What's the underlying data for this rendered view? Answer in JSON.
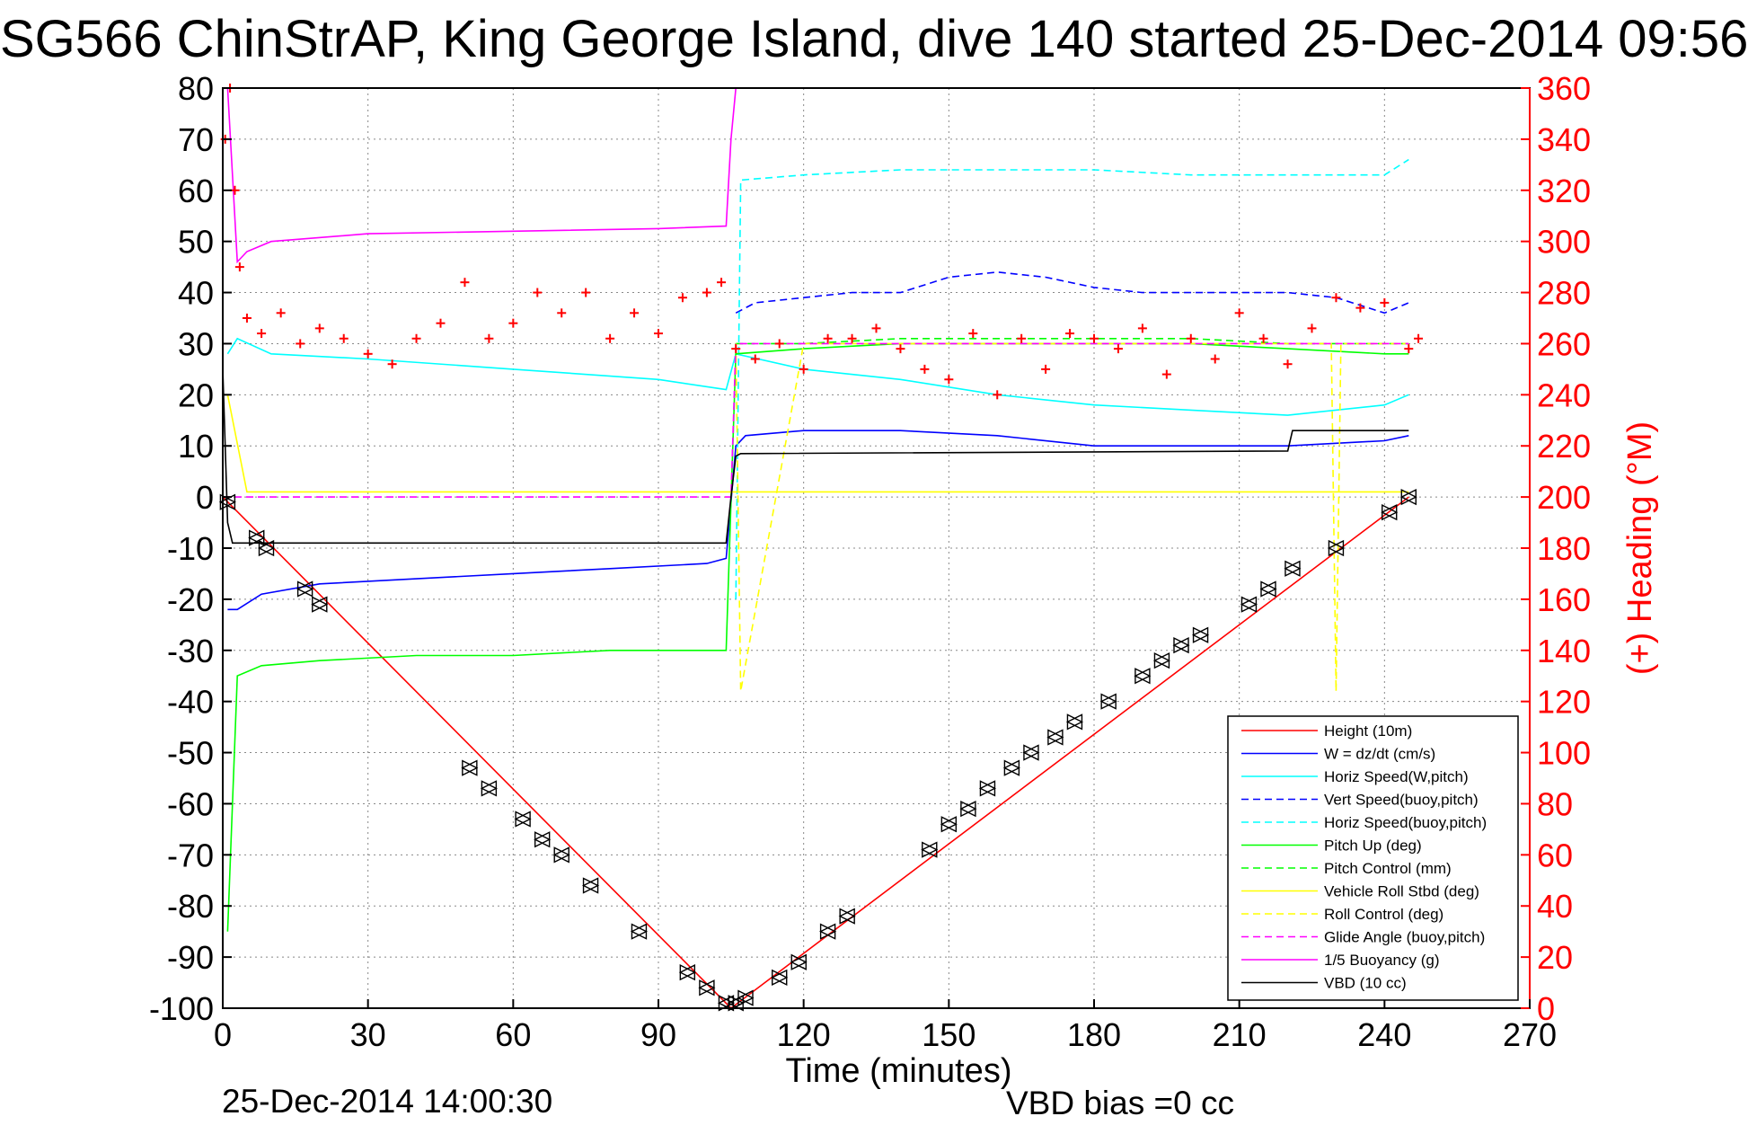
{
  "chart_data": {
    "type": "line",
    "title": "SG566 ChinStrAP, King George Island, dive 140 started 25-Dec-2014 09:56",
    "xlabel": "Time (minutes)",
    "ylabel_right": "(+) Heading (°M)",
    "xlim": [
      0,
      270
    ],
    "ylim": [
      -100,
      80
    ],
    "ylim_right": [
      0,
      360
    ],
    "x_ticks": [
      "0",
      "30",
      "60",
      "90",
      "120",
      "150",
      "180",
      "210",
      "240",
      "270"
    ],
    "y_ticks": [
      "80",
      "70",
      "60",
      "50",
      "40",
      "30",
      "20",
      "10",
      "0",
      "-10",
      "-20",
      "-30",
      "-40",
      "-50",
      "-60",
      "-70",
      "-80",
      "-90",
      "-100"
    ],
    "y_right_ticks": [
      "360",
      "340",
      "320",
      "300",
      "280",
      "260",
      "240",
      "220",
      "200",
      "180",
      "160",
      "140",
      "120",
      "100",
      "80",
      "60",
      "40",
      "20",
      "0"
    ],
    "grid": true,
    "legend_position": "bottom-right",
    "legend": [
      {
        "label": "Height (10m)",
        "color": "#ff0000",
        "style": "solid"
      },
      {
        "label": "W = dz/dt (cm/s)",
        "color": "#0000ff",
        "style": "solid"
      },
      {
        "label": "Horiz Speed(W,pitch)",
        "color": "#00ffff",
        "style": "solid"
      },
      {
        "label": "Vert Speed(buoy,pitch)",
        "color": "#0000ff",
        "style": "dashed"
      },
      {
        "label": "Horiz Speed(buoy,pitch)",
        "color": "#00ffff",
        "style": "dashed"
      },
      {
        "label": "Pitch Up (deg)",
        "color": "#00ff00",
        "style": "solid"
      },
      {
        "label": "Pitch Control (mm)",
        "color": "#00ff00",
        "style": "dashed"
      },
      {
        "label": "Vehicle Roll Stbd (deg)",
        "color": "#ffff00",
        "style": "solid"
      },
      {
        "label": "Roll Control (deg)",
        "color": "#ffff00",
        "style": "dashed"
      },
      {
        "label": "Glide Angle (buoy,pitch)",
        "color": "#ff00ff",
        "style": "dashed"
      },
      {
        "label": "1/5 Buoyancy (g)",
        "color": "#ff00ff",
        "style": "solid"
      },
      {
        "label": "VBD (10 cc)",
        "color": "#000000",
        "style": "solid"
      }
    ],
    "series": [
      {
        "name": "Height (10m)",
        "color": "#ff0000",
        "style": "solid",
        "x": [
          0,
          105,
          245
        ],
        "y": [
          0,
          -100,
          0
        ]
      },
      {
        "name": "W = dz/dt (cm/s)",
        "color": "#0000ff",
        "style": "solid",
        "x": [
          1,
          3,
          8,
          20,
          40,
          60,
          80,
          100,
          104,
          106,
          108,
          120,
          140,
          160,
          180,
          200,
          220,
          240,
          245
        ],
        "y": [
          -22,
          -22,
          -19,
          -17,
          -16,
          -15,
          -14,
          -13,
          -12,
          10,
          12,
          13,
          13,
          12,
          10,
          10,
          10,
          11,
          12
        ]
      },
      {
        "name": "Horiz Speed(W,pitch)",
        "color": "#00ffff",
        "style": "solid",
        "x": [
          1,
          3,
          10,
          30,
          60,
          90,
          104,
          106,
          120,
          140,
          160,
          180,
          200,
          220,
          240,
          245
        ],
        "y": [
          28,
          31,
          28,
          27,
          25,
          23,
          21,
          28,
          25,
          23,
          20,
          18,
          17,
          16,
          18,
          20
        ]
      },
      {
        "name": "Vert Speed(buoy,pitch)",
        "color": "#0000ff",
        "style": "dashed",
        "x": [
          106,
          110,
          120,
          130,
          140,
          150,
          160,
          170,
          180,
          190,
          200,
          210,
          220,
          230,
          240,
          245
        ],
        "y": [
          36,
          38,
          39,
          40,
          40,
          43,
          44,
          43,
          41,
          40,
          40,
          40,
          40,
          39,
          36,
          38
        ]
      },
      {
        "name": "Horiz Speed(buoy,pitch)",
        "color": "#00ffff",
        "style": "dashed",
        "x": [
          106,
          107,
          120,
          140,
          160,
          180,
          200,
          220,
          240,
          245
        ],
        "y": [
          -20,
          62,
          63,
          64,
          64,
          64,
          63,
          63,
          63,
          66
        ]
      },
      {
        "name": "Pitch Up (deg)",
        "color": "#00ff00",
        "style": "solid",
        "x": [
          1,
          3,
          8,
          20,
          40,
          60,
          80,
          100,
          104,
          106,
          120,
          140,
          160,
          180,
          200,
          220,
          240,
          245
        ],
        "y": [
          -85,
          -35,
          -33,
          -32,
          -31,
          -31,
          -30,
          -30,
          -30,
          28,
          29,
          30,
          30,
          30,
          30,
          29,
          28,
          28
        ]
      },
      {
        "name": "Pitch Control (mm)",
        "color": "#00ff00",
        "style": "dashed",
        "x": [
          106,
          120,
          140,
          160,
          180,
          200,
          220,
          240,
          245
        ],
        "y": [
          30,
          30,
          31,
          31,
          31,
          31,
          30,
          30,
          30
        ]
      },
      {
        "name": "Vehicle Roll Stbd (deg)",
        "color": "#ffff00",
        "style": "solid",
        "x": [
          1,
          5,
          20,
          40,
          60,
          80,
          100,
          105,
          120,
          140,
          160,
          180,
          200,
          220,
          240,
          245
        ],
        "y": [
          20,
          1,
          1,
          1,
          1,
          1,
          1,
          1,
          1,
          1,
          1,
          1,
          1,
          1,
          1,
          1
        ]
      },
      {
        "name": "Roll Control (deg)",
        "color": "#ffff00",
        "style": "dashed",
        "x": [
          106,
          107,
          120,
          150,
          180,
          210,
          229,
          230,
          231,
          245
        ],
        "y": [
          30,
          -38,
          30,
          30,
          30,
          30,
          30,
          -38,
          30,
          30
        ]
      },
      {
        "name": "Glide Angle (buoy,pitch)",
        "color": "#ff00ff",
        "style": "dashed",
        "x": [
          0,
          105,
          106,
          245
        ],
        "y": [
          0,
          0,
          30,
          30
        ]
      },
      {
        "name": "1/5 Buoyancy (g)",
        "color": "#ff00ff",
        "style": "solid",
        "x": [
          1,
          3,
          5,
          10,
          30,
          60,
          90,
          104,
          105,
          106
        ],
        "y": [
          80,
          46,
          48,
          50,
          51.5,
          52,
          52.5,
          53,
          70,
          80
        ]
      },
      {
        "name": "VBD (10 cc)",
        "color": "#000000",
        "style": "solid",
        "x": [
          0,
          1,
          2,
          104,
          105,
          106,
          107,
          220,
          221,
          245
        ],
        "y": [
          25,
          -5,
          -9,
          -9,
          0,
          8,
          8.5,
          9,
          13,
          13
        ]
      }
    ],
    "heading_series": {
      "name": "Heading",
      "color": "#ff0000",
      "marker": "+",
      "x": [
        0.5,
        1.5,
        2.5,
        3.5,
        5,
        8,
        12,
        16,
        20,
        25,
        30,
        35,
        40,
        45,
        50,
        55,
        60,
        65,
        70,
        75,
        80,
        85,
        90,
        95,
        100,
        103,
        106,
        110,
        115,
        120,
        125,
        130,
        135,
        140,
        145,
        150,
        155,
        160,
        165,
        170,
        175,
        180,
        185,
        190,
        195,
        200,
        205,
        210,
        215,
        220,
        225,
        230,
        235,
        240,
        245,
        247
      ],
      "y": [
        340,
        360,
        320,
        290,
        270,
        264,
        272,
        260,
        266,
        262,
        256,
        252,
        262,
        268,
        284,
        262,
        268,
        280,
        272,
        280,
        262,
        272,
        264,
        278,
        280,
        284,
        258,
        254,
        260,
        250,
        262,
        262,
        266,
        258,
        250,
        246,
        264,
        240,
        262,
        250,
        264,
        262,
        258,
        266,
        248,
        262,
        254,
        272,
        262,
        252,
        266,
        278,
        274,
        276,
        258,
        262
      ]
    },
    "marker_series": {
      "name": "Depth markers",
      "color": "#000000",
      "marker": "triangle",
      "x": [
        1,
        7,
        9,
        17,
        20,
        51,
        55,
        62,
        66,
        70,
        76,
        86,
        96,
        100,
        104,
        106,
        108,
        115,
        119,
        125,
        129,
        146,
        150,
        154,
        158,
        163,
        167,
        172,
        176,
        183,
        190,
        194,
        198,
        202,
        212,
        216,
        221,
        230,
        241,
        245
      ],
      "y": [
        -1,
        -8,
        -10,
        -18,
        -21,
        -53,
        -57,
        -63,
        -67,
        -70,
        -76,
        -85,
        -93,
        -96,
        -99,
        -99,
        -98,
        -94,
        -91,
        -85,
        -82,
        -69,
        -64,
        -61,
        -57,
        -53,
        -50,
        -47,
        -44,
        -40,
        -35,
        -32,
        -29,
        -27,
        -21,
        -18,
        -14,
        -10,
        -3,
        0
      ]
    }
  },
  "footer": {
    "timestamp": "25-Dec-2014 14:00:30",
    "vbd_bias": "VBD bias =0 cc"
  }
}
